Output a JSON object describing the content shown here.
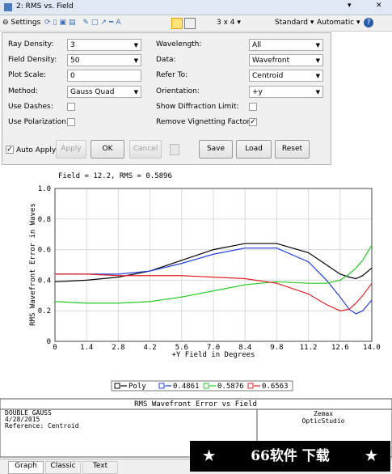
{
  "window": {
    "title": "2: RMS vs. Field"
  },
  "toolbar": {
    "settings": "Settings",
    "layout": "3 x 4",
    "standard": "Standard",
    "automatic": "Automatic"
  },
  "settings": {
    "left": [
      {
        "label": "Ray Density:",
        "kind": "select",
        "value": "3"
      },
      {
        "label": "Field Density:",
        "kind": "select",
        "value": "50"
      },
      {
        "label": "Plot Scale:",
        "kind": "text",
        "value": "0"
      },
      {
        "label": "Method:",
        "kind": "select",
        "value": "Gauss Quad"
      },
      {
        "label": "Use Dashes:",
        "kind": "checkbox",
        "checked": false
      },
      {
        "label": "Use Polarization:",
        "kind": "checkbox",
        "checked": false
      }
    ],
    "right": [
      {
        "label": "Wavelength:",
        "kind": "select",
        "value": "All"
      },
      {
        "label": "Data:",
        "kind": "select",
        "value": "Wavefront"
      },
      {
        "label": "Refer To:",
        "kind": "select",
        "value": "Centroid"
      },
      {
        "label": "Orientation:",
        "kind": "select",
        "value": "+y"
      },
      {
        "label": "Show Diffraction Limit:",
        "kind": "checkbox",
        "checked": false
      },
      {
        "label": "Remove Vignetting Factors:",
        "kind": "checkbox",
        "checked": true
      }
    ]
  },
  "buttons": {
    "auto_apply": "Auto Apply",
    "auto_apply_checked": true,
    "apply": "Apply",
    "ok": "OK",
    "cancel": "Cancel",
    "save": "Save",
    "load": "Load",
    "reset": "Reset"
  },
  "chart_data": {
    "type": "line",
    "subtitle": "Field = 12.2, RMS = 0.5896",
    "title": "RMS Wavefront Error vs Field",
    "x_label": "+Y Field in Degrees",
    "y_label": "RMS Wavefront Error in Waves",
    "x": [
      0,
      1.4,
      2.8,
      4.2,
      5.6,
      7.0,
      8.4,
      9.8,
      11.2,
      12.0,
      12.6,
      13.0,
      13.3,
      13.6,
      14.0
    ],
    "series": [
      {
        "name": "Poly",
        "color": "#000000",
        "values": [
          0.39,
          0.4,
          0.42,
          0.46,
          0.53,
          0.6,
          0.64,
          0.64,
          0.58,
          0.5,
          0.44,
          0.42,
          0.41,
          0.43,
          0.48
        ]
      },
      {
        "name": "0.4861",
        "color": "#1f3fe0",
        "values": [
          0.44,
          0.44,
          0.44,
          0.46,
          0.51,
          0.57,
          0.61,
          0.61,
          0.52,
          0.4,
          0.29,
          0.21,
          0.18,
          0.2,
          0.27
        ]
      },
      {
        "name": "0.5876",
        "color": "#22cc22",
        "values": [
          0.26,
          0.25,
          0.25,
          0.26,
          0.29,
          0.33,
          0.37,
          0.39,
          0.38,
          0.38,
          0.4,
          0.44,
          0.48,
          0.53,
          0.63
        ]
      },
      {
        "name": "0.6563",
        "color": "#e02020",
        "values": [
          0.44,
          0.44,
          0.43,
          0.43,
          0.43,
          0.42,
          0.41,
          0.38,
          0.31,
          0.24,
          0.2,
          0.21,
          0.25,
          0.3,
          0.38
        ]
      }
    ],
    "xlim": [
      0,
      14
    ],
    "ylim": [
      0,
      1
    ],
    "xticks": [
      0,
      1.4,
      2.8,
      4.2,
      5.6,
      {
        "value": 7,
        "label": "7.0"
      },
      8.4,
      9.8,
      11.2,
      12.6,
      {
        "value": 14,
        "label": "14.0"
      }
    ],
    "yticks": [
      0,
      0.2,
      0.4,
      0.6,
      0.8,
      {
        "value": 1,
        "label": "1.0"
      }
    ],
    "grid": true
  },
  "footer": {
    "lines": [
      "DOUBLE GAUSS",
      "4/28/2015",
      "Reference: Centroid"
    ],
    "company": [
      "Zemax",
      "OpticStudio"
    ]
  },
  "watermark": "66软件 下载",
  "tabs": [
    "Graph",
    "Classic",
    "Text"
  ]
}
